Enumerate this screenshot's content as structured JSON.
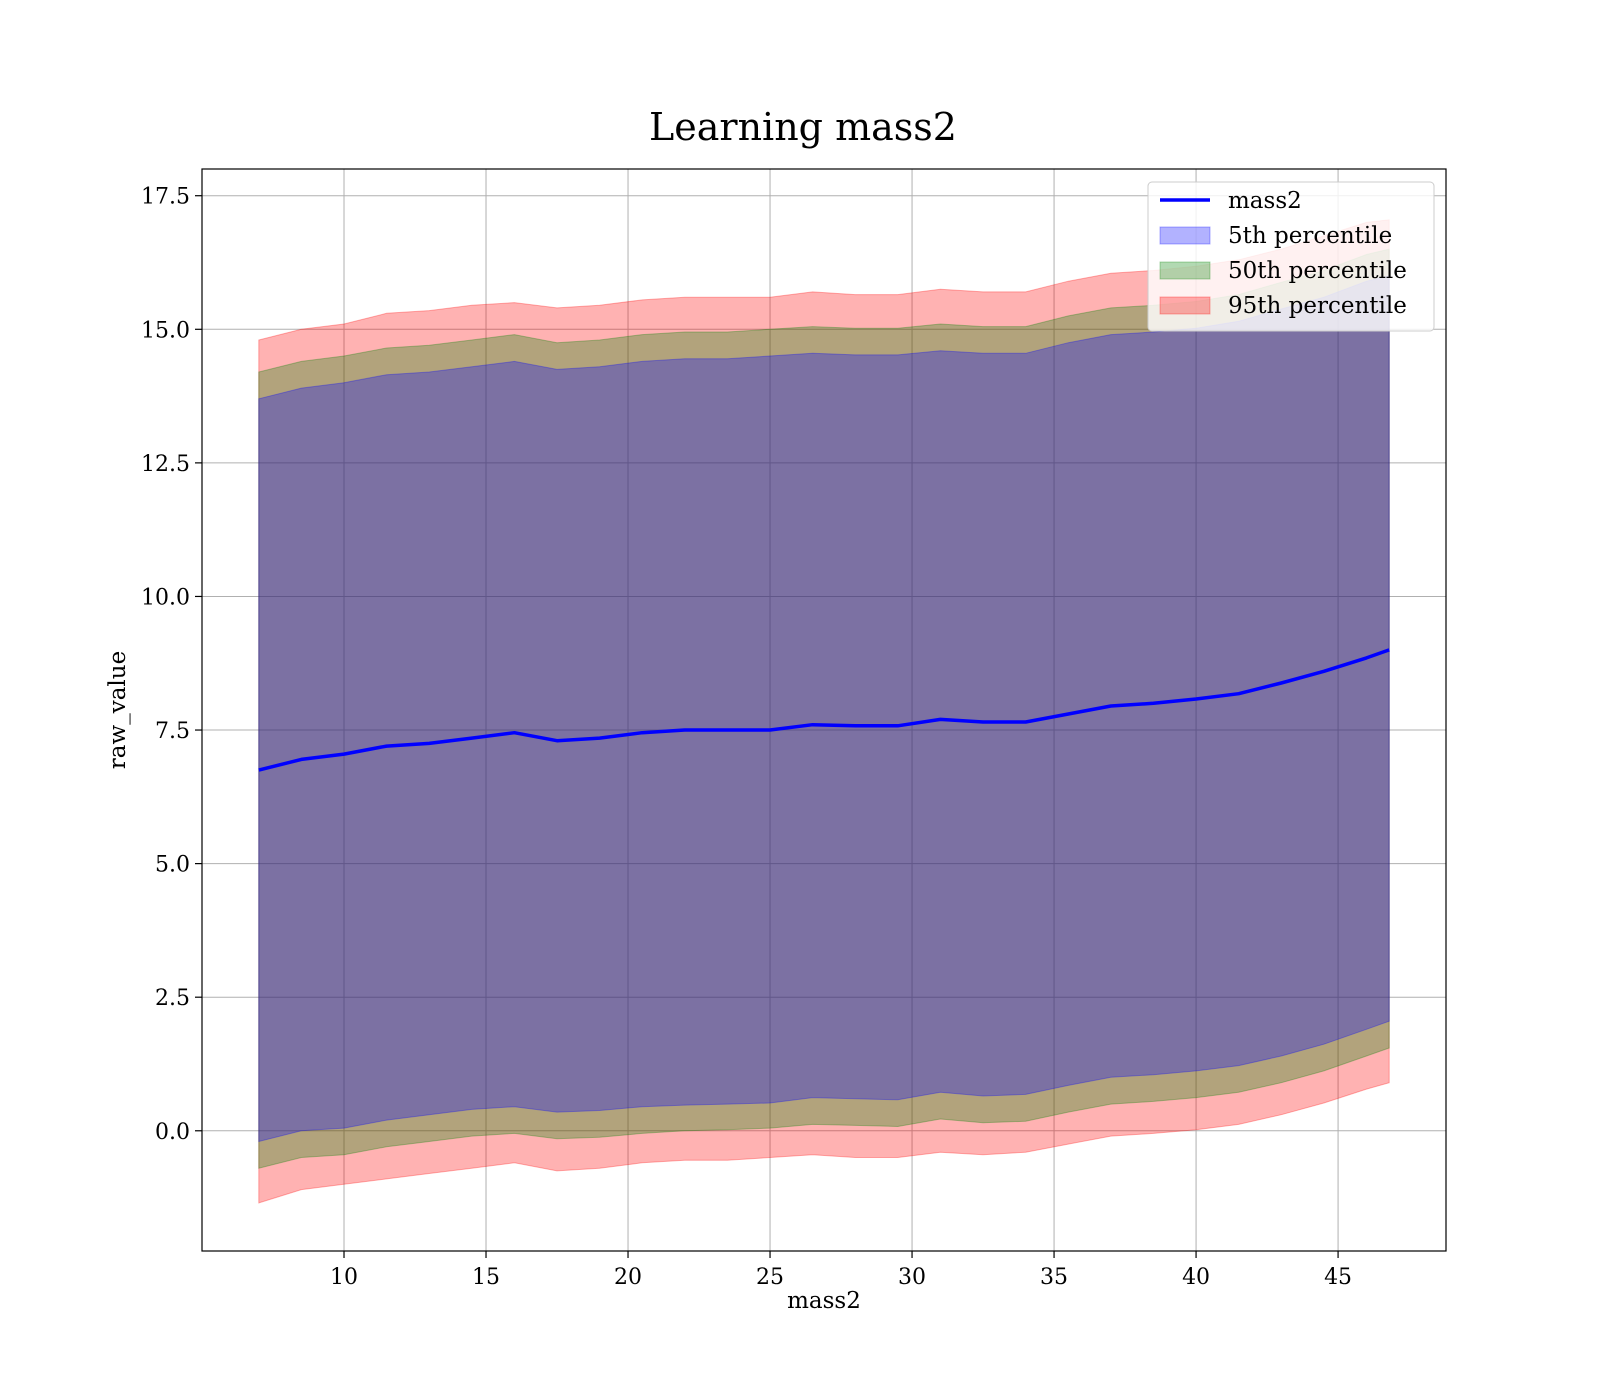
{
  "chart_data": {
    "type": "area",
    "title": "Learning mass2",
    "xlabel": "mass2",
    "ylabel": "raw_value",
    "xlim": [
      5.0,
      48.8
    ],
    "ylim": [
      -2.25,
      18.0
    ],
    "xticks": [
      10,
      15,
      20,
      25,
      30,
      35,
      40,
      45
    ],
    "yticks": [
      0.0,
      2.5,
      5.0,
      7.5,
      10.0,
      12.5,
      15.0,
      17.5
    ],
    "xtick_labels": [
      "10",
      "15",
      "20",
      "25",
      "30",
      "35",
      "40",
      "45"
    ],
    "ytick_labels": [
      "0.0",
      "2.5",
      "5.0",
      "7.5",
      "10.0",
      "12.5",
      "15.0",
      "17.5"
    ],
    "grid": true,
    "legend_position": "top-right",
    "x": [
      7.0,
      8.5,
      10.0,
      11.5,
      13.0,
      14.5,
      16.0,
      17.5,
      19.0,
      20.5,
      22.0,
      23.5,
      25.0,
      26.5,
      28.0,
      29.5,
      31.0,
      32.5,
      34.0,
      35.5,
      37.0,
      38.5,
      40.0,
      41.5,
      43.0,
      44.5,
      46.0,
      46.8
    ],
    "series": [
      {
        "name": "mass2",
        "kind": "line",
        "color": "#0000ff",
        "values": [
          6.75,
          6.95,
          7.05,
          7.2,
          7.25,
          7.35,
          7.45,
          7.3,
          7.35,
          7.45,
          7.5,
          7.5,
          7.5,
          7.6,
          7.58,
          7.58,
          7.7,
          7.65,
          7.65,
          7.8,
          7.95,
          8.0,
          8.08,
          8.18,
          8.38,
          8.6,
          8.85,
          9.0
        ]
      },
      {
        "name": "5th percentile",
        "kind": "band",
        "color": "#0000ff",
        "lower": [
          -0.2,
          0.0,
          0.05,
          0.2,
          0.3,
          0.4,
          0.45,
          0.35,
          0.38,
          0.45,
          0.48,
          0.5,
          0.52,
          0.62,
          0.6,
          0.58,
          0.72,
          0.65,
          0.68,
          0.85,
          1.0,
          1.05,
          1.12,
          1.22,
          1.4,
          1.62,
          1.9,
          2.05
        ],
        "upper": [
          13.7,
          13.9,
          14.0,
          14.15,
          14.2,
          14.3,
          14.4,
          14.25,
          14.3,
          14.4,
          14.45,
          14.45,
          14.5,
          14.55,
          14.52,
          14.52,
          14.6,
          14.55,
          14.55,
          14.75,
          14.9,
          14.95,
          15.02,
          15.15,
          15.38,
          15.6,
          15.9,
          16.0
        ]
      },
      {
        "name": "50th percentile",
        "kind": "band",
        "color": "#008000",
        "lower": [
          -0.7,
          -0.5,
          -0.45,
          -0.3,
          -0.2,
          -0.1,
          -0.05,
          -0.15,
          -0.12,
          -0.05,
          0.0,
          0.02,
          0.05,
          0.12,
          0.1,
          0.08,
          0.22,
          0.15,
          0.18,
          0.35,
          0.5,
          0.55,
          0.62,
          0.72,
          0.9,
          1.12,
          1.4,
          1.55
        ],
        "upper": [
          14.2,
          14.4,
          14.5,
          14.65,
          14.7,
          14.8,
          14.9,
          14.75,
          14.8,
          14.9,
          14.95,
          14.95,
          15.0,
          15.05,
          15.02,
          15.02,
          15.1,
          15.05,
          15.05,
          15.25,
          15.4,
          15.45,
          15.52,
          15.65,
          15.88,
          16.1,
          16.4,
          16.5
        ]
      },
      {
        "name": "95th percentile",
        "kind": "band",
        "color": "#ff0000",
        "lower": [
          -1.35,
          -1.1,
          -1.0,
          -0.9,
          -0.8,
          -0.7,
          -0.6,
          -0.75,
          -0.7,
          -0.6,
          -0.55,
          -0.55,
          -0.5,
          -0.45,
          -0.5,
          -0.5,
          -0.4,
          -0.45,
          -0.4,
          -0.25,
          -0.1,
          -0.05,
          0.02,
          0.12,
          0.3,
          0.52,
          0.78,
          0.9
        ],
        "upper": [
          14.8,
          15.0,
          15.1,
          15.3,
          15.35,
          15.45,
          15.5,
          15.4,
          15.45,
          15.55,
          15.6,
          15.6,
          15.6,
          15.7,
          15.65,
          15.65,
          15.75,
          15.7,
          15.7,
          15.9,
          16.05,
          16.1,
          16.18,
          16.3,
          16.5,
          16.75,
          17.0,
          17.05
        ]
      }
    ]
  }
}
